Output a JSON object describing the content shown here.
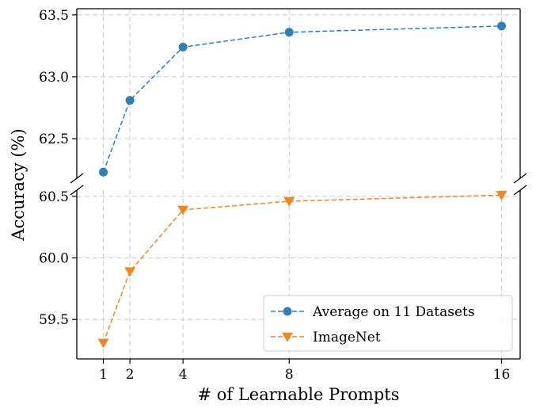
{
  "chart_data": {
    "type": "line",
    "xlabel": "# of Learnable Prompts",
    "ylabel": "Accuracy (%)",
    "x": [
      1,
      2,
      4,
      8,
      16
    ],
    "xticks": [
      "1",
      "2",
      "4",
      "8",
      "16"
    ],
    "xlim": [
      0,
      16.7
    ],
    "grid": true,
    "legend_position": "bottom-right",
    "broken_y_axis": true,
    "upper_panel": {
      "ylim": [
        62.18,
        63.55
      ],
      "yticks": [
        "62.5",
        "63.0",
        "63.5"
      ]
    },
    "lower_panel": {
      "ylim": [
        59.18,
        60.55
      ],
      "yticks": [
        "59.5",
        "60.0",
        "60.5"
      ]
    },
    "series": [
      {
        "name": "Average on 11 Datasets",
        "values": [
          62.23,
          62.81,
          63.24,
          63.36,
          63.41
        ],
        "color": "#2f7fb8",
        "marker": "circle",
        "panel": "upper"
      },
      {
        "name": "ImageNet",
        "values": [
          59.31,
          59.89,
          60.39,
          60.46,
          60.51
        ],
        "color": "#f5861f",
        "marker": "triangle-down",
        "panel": "lower"
      }
    ]
  }
}
